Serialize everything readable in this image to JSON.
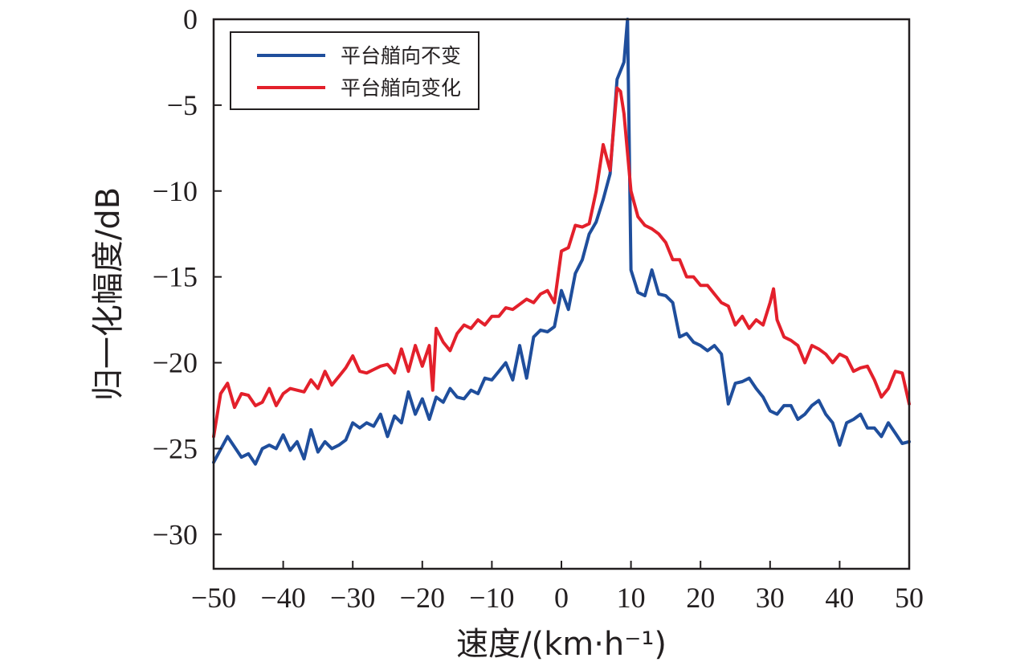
{
  "chart_data": {
    "type": "line",
    "xlabel": "速度/(km·h⁻¹)",
    "ylabel": "归一化幅度/dB",
    "xlim": [
      -50,
      50
    ],
    "ylim": [
      -32,
      0
    ],
    "xticks": [
      -50,
      -40,
      -30,
      -20,
      -10,
      0,
      10,
      20,
      30,
      40,
      50
    ],
    "yticks": [
      0,
      -5,
      -10,
      -15,
      -20,
      -25,
      -30
    ],
    "xtick_labels": [
      "−50",
      "−40",
      "−30",
      "−20",
      "−10",
      "0",
      "10",
      "20",
      "30",
      "40",
      "50"
    ],
    "ytick_labels": [
      "0",
      "−5",
      "−10",
      "−15",
      "−20",
      "−25",
      "−30"
    ],
    "grid": false,
    "legend_position": "top-left",
    "series": [
      {
        "name": "平台艏向不变",
        "color": "#1f4e9c",
        "x": [
          -50,
          -48,
          -46,
          -45,
          -44,
          -43,
          -42,
          -41,
          -40,
          -39,
          -38,
          -37,
          -36,
          -35,
          -34,
          -33,
          -32,
          -31,
          -30,
          -29,
          -28,
          -27,
          -26,
          -25,
          -24,
          -23,
          -22,
          -21,
          -20,
          -19,
          -18,
          -17,
          -16,
          -15,
          -14,
          -13,
          -12,
          -11,
          -10,
          -9,
          -8,
          -7,
          -6,
          -5,
          -4,
          -3,
          -2,
          -1,
          0,
          1,
          2,
          3,
          4,
          5,
          6,
          7,
          8,
          9,
          9.5,
          10,
          11,
          12,
          13,
          14,
          15,
          16,
          17,
          18,
          19,
          20,
          21,
          22,
          23,
          24,
          25,
          26,
          27,
          28,
          29,
          30,
          31,
          32,
          33,
          34,
          35,
          36,
          37,
          38,
          39,
          40,
          41,
          42,
          43,
          44,
          45,
          46,
          47,
          48,
          49,
          50
        ],
        "y": [
          -25.8,
          -24.3,
          -25.5,
          -25.3,
          -25.9,
          -25.0,
          -24.8,
          -25.0,
          -24.2,
          -25.1,
          -24.6,
          -25.6,
          -23.9,
          -25.2,
          -24.6,
          -25.0,
          -24.8,
          -24.5,
          -23.5,
          -23.8,
          -23.5,
          -23.7,
          -23.0,
          -24.3,
          -23.1,
          -23.5,
          -21.7,
          -23.0,
          -22.1,
          -23.3,
          -22.0,
          -22.3,
          -21.5,
          -22.0,
          -22.1,
          -21.6,
          -21.8,
          -20.9,
          -21.0,
          -20.5,
          -20.0,
          -21.0,
          -19.0,
          -20.9,
          -18.5,
          -18.1,
          -18.2,
          -17.9,
          -15.8,
          -16.9,
          -14.8,
          -14.0,
          -12.5,
          -11.8,
          -10.5,
          -9.0,
          -3.5,
          -2.5,
          0.0,
          -14.6,
          -15.9,
          -16.1,
          -14.6,
          -16.0,
          -16.1,
          -16.5,
          -18.5,
          -18.3,
          -18.8,
          -19.0,
          -19.3,
          -19.0,
          -19.5,
          -22.4,
          -21.2,
          -21.1,
          -20.9,
          -21.5,
          -22.0,
          -22.8,
          -23.0,
          -22.5,
          -22.5,
          -23.3,
          -23.0,
          -22.5,
          -22.2,
          -23.0,
          -23.5,
          -24.8,
          -23.5,
          -23.3,
          -23.0,
          -23.8,
          -23.8,
          -24.3,
          -23.5,
          -24.1,
          -24.7,
          -24.6
        ]
      },
      {
        "name": "平台艏向变化",
        "color": "#e3202b",
        "x": [
          -50,
          -49,
          -48,
          -47,
          -46,
          -45,
          -44,
          -43,
          -42,
          -41,
          -40,
          -39,
          -38,
          -37,
          -36,
          -35,
          -34,
          -33,
          -32,
          -31,
          -30,
          -29,
          -28,
          -27,
          -26,
          -25,
          -24,
          -23,
          -22,
          -21,
          -20,
          -19,
          -18.5,
          -18,
          -17,
          -16,
          -15,
          -14,
          -13,
          -12,
          -11,
          -10,
          -9,
          -8,
          -7,
          -6,
          -5,
          -4,
          -3,
          -2,
          -1,
          0,
          1,
          2,
          3,
          4,
          5,
          6,
          7,
          8,
          8.5,
          9,
          10,
          11,
          12,
          13,
          14,
          15,
          16,
          17,
          18,
          19,
          20,
          21,
          22,
          23,
          24,
          25,
          26,
          27,
          28,
          29,
          30,
          30.5,
          31,
          32,
          33,
          34,
          35,
          36,
          37,
          38,
          39,
          40,
          41,
          42,
          43,
          44,
          45,
          46,
          47,
          48,
          49,
          50
        ],
        "y": [
          -24.3,
          -21.8,
          -21.2,
          -22.6,
          -21.8,
          -21.9,
          -22.5,
          -22.3,
          -21.5,
          -22.5,
          -21.8,
          -21.5,
          -21.6,
          -21.7,
          -21.0,
          -21.5,
          -20.5,
          -21.3,
          -20.8,
          -20.3,
          -19.6,
          -20.5,
          -20.6,
          -20.4,
          -20.2,
          -20.1,
          -20.6,
          -19.2,
          -20.5,
          -19.0,
          -20.2,
          -19.0,
          -21.6,
          -18.0,
          -18.8,
          -19.3,
          -18.3,
          -17.8,
          -18.0,
          -17.5,
          -17.8,
          -17.3,
          -17.3,
          -16.8,
          -16.9,
          -16.6,
          -16.3,
          -16.5,
          -16.0,
          -15.8,
          -16.5,
          -13.5,
          -13.3,
          -12.0,
          -12.1,
          -11.9,
          -10.0,
          -7.3,
          -8.8,
          -4.0,
          -4.2,
          -5.5,
          -10.0,
          -11.5,
          -12.0,
          -12.2,
          -12.5,
          -13.0,
          -14.0,
          -14.0,
          -15.0,
          -15.0,
          -15.5,
          -15.5,
          -16.0,
          -16.5,
          -16.7,
          -17.8,
          -17.3,
          -18.0,
          -17.5,
          -17.8,
          -16.5,
          -15.7,
          -17.5,
          -18.5,
          -18.7,
          -19.0,
          -20.0,
          -19.0,
          -19.2,
          -19.5,
          -20.0,
          -19.5,
          -19.7,
          -20.5,
          -20.3,
          -20.2,
          -21.0,
          -22.0,
          -21.5,
          -20.5,
          -20.6,
          -22.4
        ]
      }
    ]
  }
}
